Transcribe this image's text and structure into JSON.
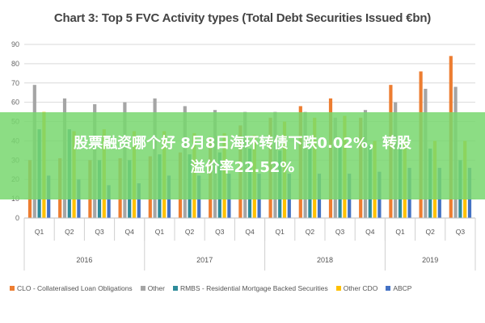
{
  "chart_data": {
    "type": "bar",
    "title": "Chart 3: Top 5 FVC Activity types (Total Debt Securities Issued €bn)",
    "ylim": [
      0,
      90
    ],
    "yticks": [
      0,
      10,
      20,
      30,
      40,
      50,
      60,
      70,
      80,
      90
    ],
    "grid": true,
    "legend_position": "bottom",
    "categories": [
      "Q1",
      "Q2",
      "Q3",
      "Q4",
      "Q1",
      "Q2",
      "Q3",
      "Q4",
      "Q1",
      "Q2",
      "Q3",
      "Q4",
      "Q1",
      "Q2",
      "Q3"
    ],
    "year_groups": [
      {
        "label": "2016",
        "count": 4
      },
      {
        "label": "2017",
        "count": 4
      },
      {
        "label": "2018",
        "count": 4
      },
      {
        "label": "2019",
        "count": 3
      }
    ],
    "series": [
      {
        "name": "CLO - Collateralised Loan Obligations",
        "color": "#ED7D31",
        "values": [
          30,
          31,
          30,
          31,
          32,
          34,
          42,
          48,
          52,
          58,
          62,
          52,
          69,
          76,
          84
        ]
      },
      {
        "name": "Other",
        "color": "#A5A5A5",
        "values": [
          69,
          62,
          59,
          60,
          62,
          58,
          56,
          55,
          55,
          55,
          52,
          56,
          60,
          67,
          68
        ]
      },
      {
        "name": "RMBS - Residential Mortgage Backed Securities",
        "color": "#2E8B9A",
        "values": [
          46,
          46,
          30,
          30,
          33,
          33,
          34,
          36,
          35,
          36,
          37,
          38,
          38,
          36,
          30
        ]
      },
      {
        "name": "Other CDO",
        "color": "#FFC000",
        "values": [
          55,
          45,
          46,
          45,
          45,
          44,
          44,
          43,
          50,
          52,
          53,
          40,
          40,
          40,
          40
        ]
      },
      {
        "name": "ABCP",
        "color": "#4472C4",
        "values": [
          22,
          20,
          17,
          18,
          22,
          22,
          23,
          23,
          23,
          23,
          23,
          24,
          26,
          26,
          26
        ]
      }
    ]
  },
  "banner": {
    "line1": "股票融资哪个好 8月8日海环转债下跌0.02%，转股",
    "line2": "溢价率22.52%"
  }
}
